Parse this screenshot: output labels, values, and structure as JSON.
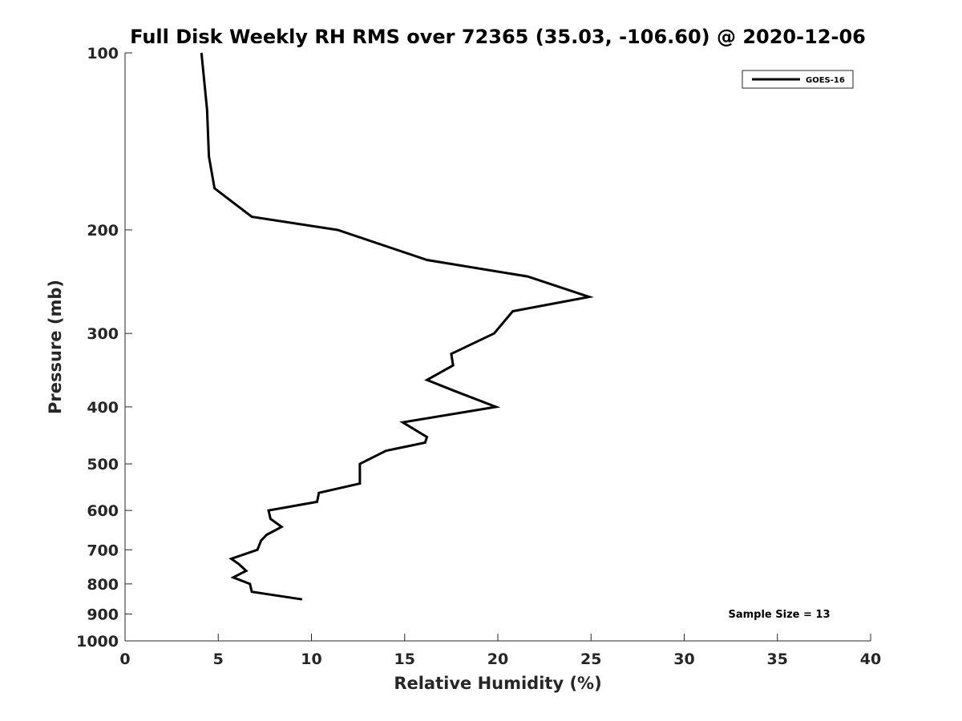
{
  "chart_data": {
    "type": "line",
    "title": "Full Disk Weekly RH RMS over 72365 (35.03, -106.60) @ 2020-12-06",
    "xlabel": "Relative Humidity (%)",
    "ylabel": "Pressure (mb)",
    "xlim": [
      0,
      40
    ],
    "ylim": [
      100,
      1000
    ],
    "y_scale": "log",
    "y_reversed": true,
    "grid": false,
    "legend_position": "top-right",
    "xticks": [
      "0",
      "5",
      "10",
      "15",
      "20",
      "25",
      "30",
      "35",
      "40"
    ],
    "yticks": [
      "100",
      "200",
      "300",
      "400",
      "500",
      "600",
      "700",
      "800",
      "900",
      "1000"
    ],
    "series": [
      {
        "name": "GOES-16",
        "color": "#000000",
        "points": [
          {
            "x": 4.1,
            "y": 100
          },
          {
            "x": 4.4,
            "y": 125
          },
          {
            "x": 4.5,
            "y": 150
          },
          {
            "x": 4.8,
            "y": 170
          },
          {
            "x": 6.8,
            "y": 190
          },
          {
            "x": 11.4,
            "y": 200
          },
          {
            "x": 16.2,
            "y": 225
          },
          {
            "x": 21.6,
            "y": 240
          },
          {
            "x": 24.9,
            "y": 260
          },
          {
            "x": 20.8,
            "y": 275
          },
          {
            "x": 19.8,
            "y": 300
          },
          {
            "x": 17.5,
            "y": 325
          },
          {
            "x": 17.6,
            "y": 340
          },
          {
            "x": 16.2,
            "y": 360
          },
          {
            "x": 17.6,
            "y": 375
          },
          {
            "x": 19.9,
            "y": 400
          },
          {
            "x": 14.9,
            "y": 425
          },
          {
            "x": 16.2,
            "y": 450
          },
          {
            "x": 16.1,
            "y": 460
          },
          {
            "x": 14.0,
            "y": 475
          },
          {
            "x": 12.6,
            "y": 500
          },
          {
            "x": 12.6,
            "y": 540
          },
          {
            "x": 10.4,
            "y": 560
          },
          {
            "x": 10.3,
            "y": 580
          },
          {
            "x": 7.7,
            "y": 600
          },
          {
            "x": 7.8,
            "y": 620
          },
          {
            "x": 8.4,
            "y": 640
          },
          {
            "x": 7.6,
            "y": 660
          },
          {
            "x": 7.3,
            "y": 675
          },
          {
            "x": 7.1,
            "y": 700
          },
          {
            "x": 5.7,
            "y": 725
          },
          {
            "x": 6.1,
            "y": 740
          },
          {
            "x": 6.5,
            "y": 760
          },
          {
            "x": 5.8,
            "y": 780
          },
          {
            "x": 6.7,
            "y": 800
          },
          {
            "x": 6.8,
            "y": 825
          },
          {
            "x": 9.5,
            "y": 850
          }
        ]
      }
    ],
    "annotations": [
      {
        "text": "Sample Size = 13",
        "position": "bottom-right"
      }
    ]
  }
}
